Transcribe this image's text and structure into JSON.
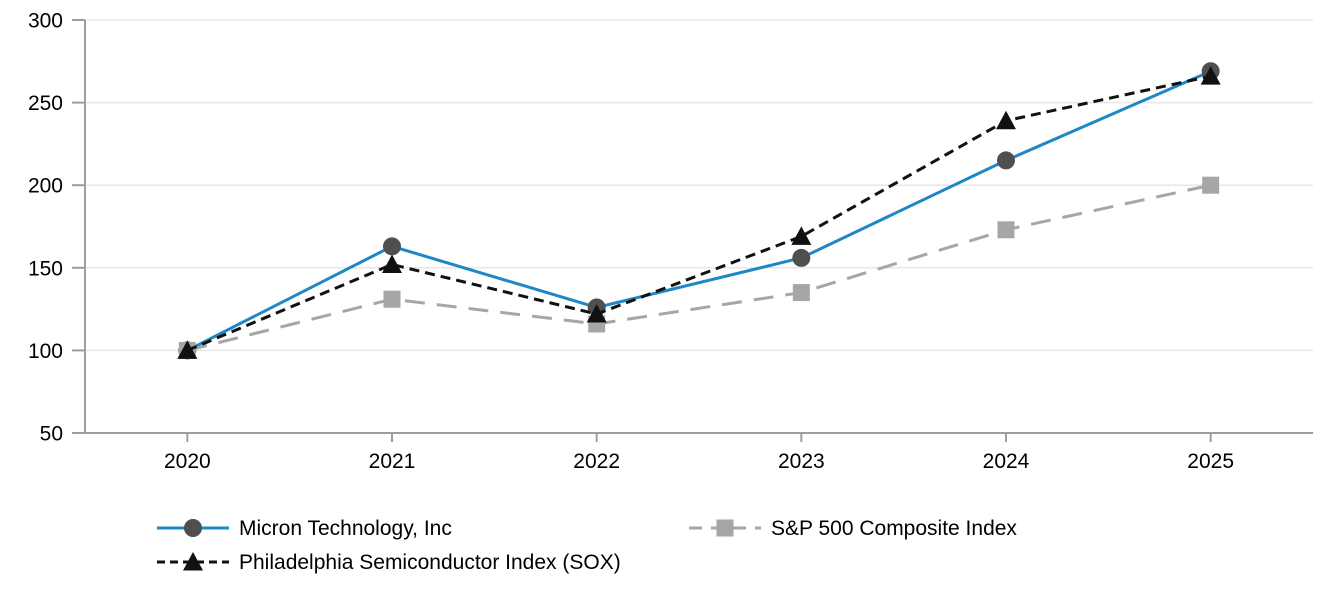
{
  "chart_data": {
    "type": "line",
    "title": "",
    "xlabel": "",
    "ylabel": "",
    "categories": [
      "2020",
      "2021",
      "2022",
      "2023",
      "2024",
      "2025"
    ],
    "series": [
      {
        "name": "Micron Technology, Inc",
        "values": [
          100,
          163,
          126,
          156,
          215,
          269
        ],
        "line_color": "#1e87c5",
        "line_style": "solid",
        "marker": "circle",
        "marker_color": "#4f4f4f"
      },
      {
        "name": "S&P 500 Composite Index",
        "values": [
          100,
          131,
          116,
          135,
          173,
          200
        ],
        "line_color": "#a6a6a6",
        "line_style": "long-dash",
        "marker": "square",
        "marker_color": "#a6a6a6"
      },
      {
        "name": "Philadelphia Semiconductor Index (SOX)",
        "values": [
          100,
          152,
          122,
          169,
          239,
          266
        ],
        "line_color": "#111111",
        "line_style": "dash",
        "marker": "triangle",
        "marker_color": "#111111"
      }
    ],
    "ylim": [
      50,
      300
    ],
    "yticks": [
      50,
      100,
      150,
      200,
      250,
      300
    ],
    "grid": "horizontal",
    "legend_position": "bottom-left, two columns",
    "axis_color": "#9d9d9d",
    "grid_color": "#e7e7e7",
    "text_color": "#000000"
  }
}
